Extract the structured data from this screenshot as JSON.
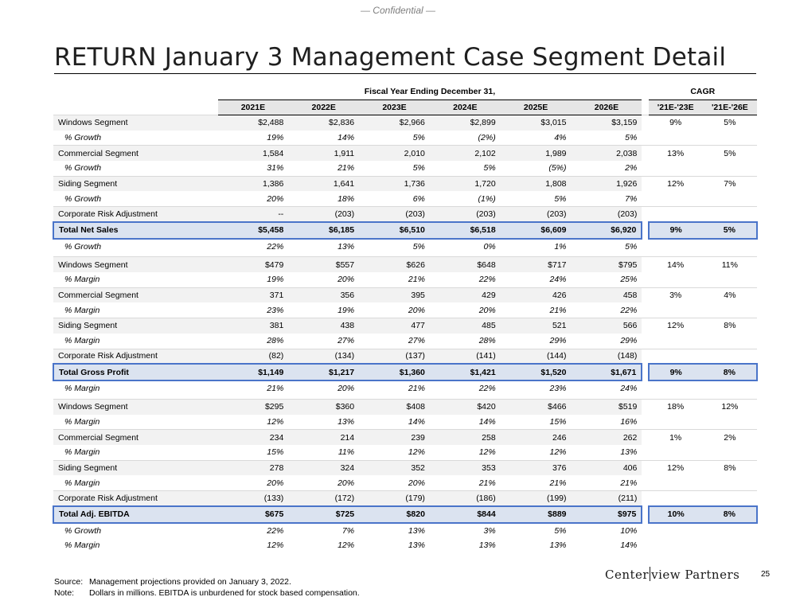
{
  "header": {
    "confidential": "— Confidential —"
  },
  "title": "RETURN January 3 Management Case Segment Detail",
  "table": {
    "fiscal_header": "Fiscal Year Ending December 31,",
    "cagr_header": "CAGR",
    "years": [
      "2021E",
      "2022E",
      "2023E",
      "2024E",
      "2025E",
      "2026E"
    ],
    "cagr_cols": [
      "'21E-'23E",
      "'21E-'26E"
    ],
    "rows": [
      {
        "type": "main",
        "label": "Windows Segment",
        "values": [
          "$2,488",
          "$2,836",
          "$2,966",
          "$2,899",
          "$3,015",
          "$3,159"
        ],
        "cagr": [
          "9%",
          "5%"
        ]
      },
      {
        "type": "sub",
        "label": "% Growth",
        "values": [
          "19%",
          "14%",
          "5%",
          "(2%)",
          "4%",
          "5%"
        ],
        "cagr": [
          "",
          ""
        ]
      },
      {
        "type": "main",
        "label": "Commercial Segment",
        "values": [
          "1,584",
          "1,911",
          "2,010",
          "2,102",
          "1,989",
          "2,038"
        ],
        "cagr": [
          "13%",
          "5%"
        ]
      },
      {
        "type": "sub",
        "label": "% Growth",
        "values": [
          "31%",
          "21%",
          "5%",
          "5%",
          "(5%)",
          "2%"
        ],
        "cagr": [
          "",
          ""
        ]
      },
      {
        "type": "main",
        "label": "Siding Segment",
        "values": [
          "1,386",
          "1,641",
          "1,736",
          "1,720",
          "1,808",
          "1,926"
        ],
        "cagr": [
          "12%",
          "7%"
        ]
      },
      {
        "type": "sub",
        "label": "% Growth",
        "values": [
          "20%",
          "18%",
          "6%",
          "(1%)",
          "5%",
          "7%"
        ],
        "cagr": [
          "",
          ""
        ]
      },
      {
        "type": "main",
        "label": "Corporate Risk Adjustment",
        "values": [
          "--",
          "(203)",
          "(203)",
          "(203)",
          "(203)",
          "(203)"
        ],
        "cagr": [
          "",
          ""
        ]
      },
      {
        "type": "total",
        "label": "Total Net Sales",
        "values": [
          "$5,458",
          "$6,185",
          "$6,510",
          "$6,518",
          "$6,609",
          "$6,920"
        ],
        "cagr": [
          "9%",
          "5%"
        ]
      },
      {
        "type": "sub",
        "label": "% Growth",
        "values": [
          "22%",
          "13%",
          "5%",
          "0%",
          "1%",
          "5%"
        ],
        "cagr": [
          "",
          ""
        ]
      },
      {
        "type": "spacer"
      },
      {
        "type": "main",
        "label": "Windows Segment",
        "values": [
          "$479",
          "$557",
          "$626",
          "$648",
          "$717",
          "$795"
        ],
        "cagr": [
          "14%",
          "11%"
        ]
      },
      {
        "type": "sub",
        "label": "% Margin",
        "values": [
          "19%",
          "20%",
          "21%",
          "22%",
          "24%",
          "25%"
        ],
        "cagr": [
          "",
          ""
        ]
      },
      {
        "type": "main",
        "label": "Commercial Segment",
        "values": [
          "371",
          "356",
          "395",
          "429",
          "426",
          "458"
        ],
        "cagr": [
          "3%",
          "4%"
        ]
      },
      {
        "type": "sub",
        "label": "% Margin",
        "values": [
          "23%",
          "19%",
          "20%",
          "20%",
          "21%",
          "22%"
        ],
        "cagr": [
          "",
          ""
        ]
      },
      {
        "type": "main",
        "label": "Siding Segment",
        "values": [
          "381",
          "438",
          "477",
          "485",
          "521",
          "566"
        ],
        "cagr": [
          "12%",
          "8%"
        ]
      },
      {
        "type": "sub",
        "label": "% Margin",
        "values": [
          "28%",
          "27%",
          "27%",
          "28%",
          "29%",
          "29%"
        ],
        "cagr": [
          "",
          ""
        ]
      },
      {
        "type": "main",
        "label": "Corporate Risk Adjustment",
        "values": [
          "(82)",
          "(134)",
          "(137)",
          "(141)",
          "(144)",
          "(148)"
        ],
        "cagr": [
          "",
          ""
        ]
      },
      {
        "type": "total",
        "label": "Total Gross Profit",
        "values": [
          "$1,149",
          "$1,217",
          "$1,360",
          "$1,421",
          "$1,520",
          "$1,671"
        ],
        "cagr": [
          "9%",
          "8%"
        ]
      },
      {
        "type": "sub",
        "label": "% Margin",
        "values": [
          "21%",
          "20%",
          "21%",
          "22%",
          "23%",
          "24%"
        ],
        "cagr": [
          "",
          ""
        ]
      },
      {
        "type": "spacer"
      },
      {
        "type": "main",
        "label": "Windows Segment",
        "values": [
          "$295",
          "$360",
          "$408",
          "$420",
          "$466",
          "$519"
        ],
        "cagr": [
          "18%",
          "12%"
        ]
      },
      {
        "type": "sub",
        "label": "% Margin",
        "values": [
          "12%",
          "13%",
          "14%",
          "14%",
          "15%",
          "16%"
        ],
        "cagr": [
          "",
          ""
        ]
      },
      {
        "type": "main",
        "label": "Commercial Segment",
        "values": [
          "234",
          "214",
          "239",
          "258",
          "246",
          "262"
        ],
        "cagr": [
          "1%",
          "2%"
        ]
      },
      {
        "type": "sub",
        "label": "% Margin",
        "values": [
          "15%",
          "11%",
          "12%",
          "12%",
          "12%",
          "13%"
        ],
        "cagr": [
          "",
          ""
        ]
      },
      {
        "type": "main",
        "label": "Siding Segment",
        "values": [
          "278",
          "324",
          "352",
          "353",
          "376",
          "406"
        ],
        "cagr": [
          "12%",
          "8%"
        ]
      },
      {
        "type": "sub",
        "label": "% Margin",
        "values": [
          "20%",
          "20%",
          "20%",
          "21%",
          "21%",
          "21%"
        ],
        "cagr": [
          "",
          ""
        ]
      },
      {
        "type": "main",
        "label": "Corporate Risk Adjustment",
        "values": [
          "(133)",
          "(172)",
          "(179)",
          "(186)",
          "(199)",
          "(211)"
        ],
        "cagr": [
          "",
          ""
        ]
      },
      {
        "type": "total",
        "label": "Total Adj. EBITDA",
        "values": [
          "$675",
          "$725",
          "$820",
          "$844",
          "$889",
          "$975"
        ],
        "cagr": [
          "10%",
          "8%"
        ]
      },
      {
        "type": "sub",
        "label": "% Growth",
        "values": [
          "22%",
          "7%",
          "13%",
          "3%",
          "5%",
          "10%"
        ],
        "cagr": [
          "",
          ""
        ]
      },
      {
        "type": "sub",
        "label": "% Margin",
        "values": [
          "12%",
          "12%",
          "13%",
          "13%",
          "13%",
          "14%"
        ],
        "cagr": [
          "",
          ""
        ]
      }
    ]
  },
  "footer": {
    "source_label": "Source:",
    "source_text": "Management projections provided on January 3, 2022.",
    "note_label": "Note:",
    "note_text": "Dollars in millions. EBITDA is unburdened for stock based compensation."
  },
  "logo": {
    "left": "Center",
    "right": "view Partners"
  },
  "page_number": "25"
}
